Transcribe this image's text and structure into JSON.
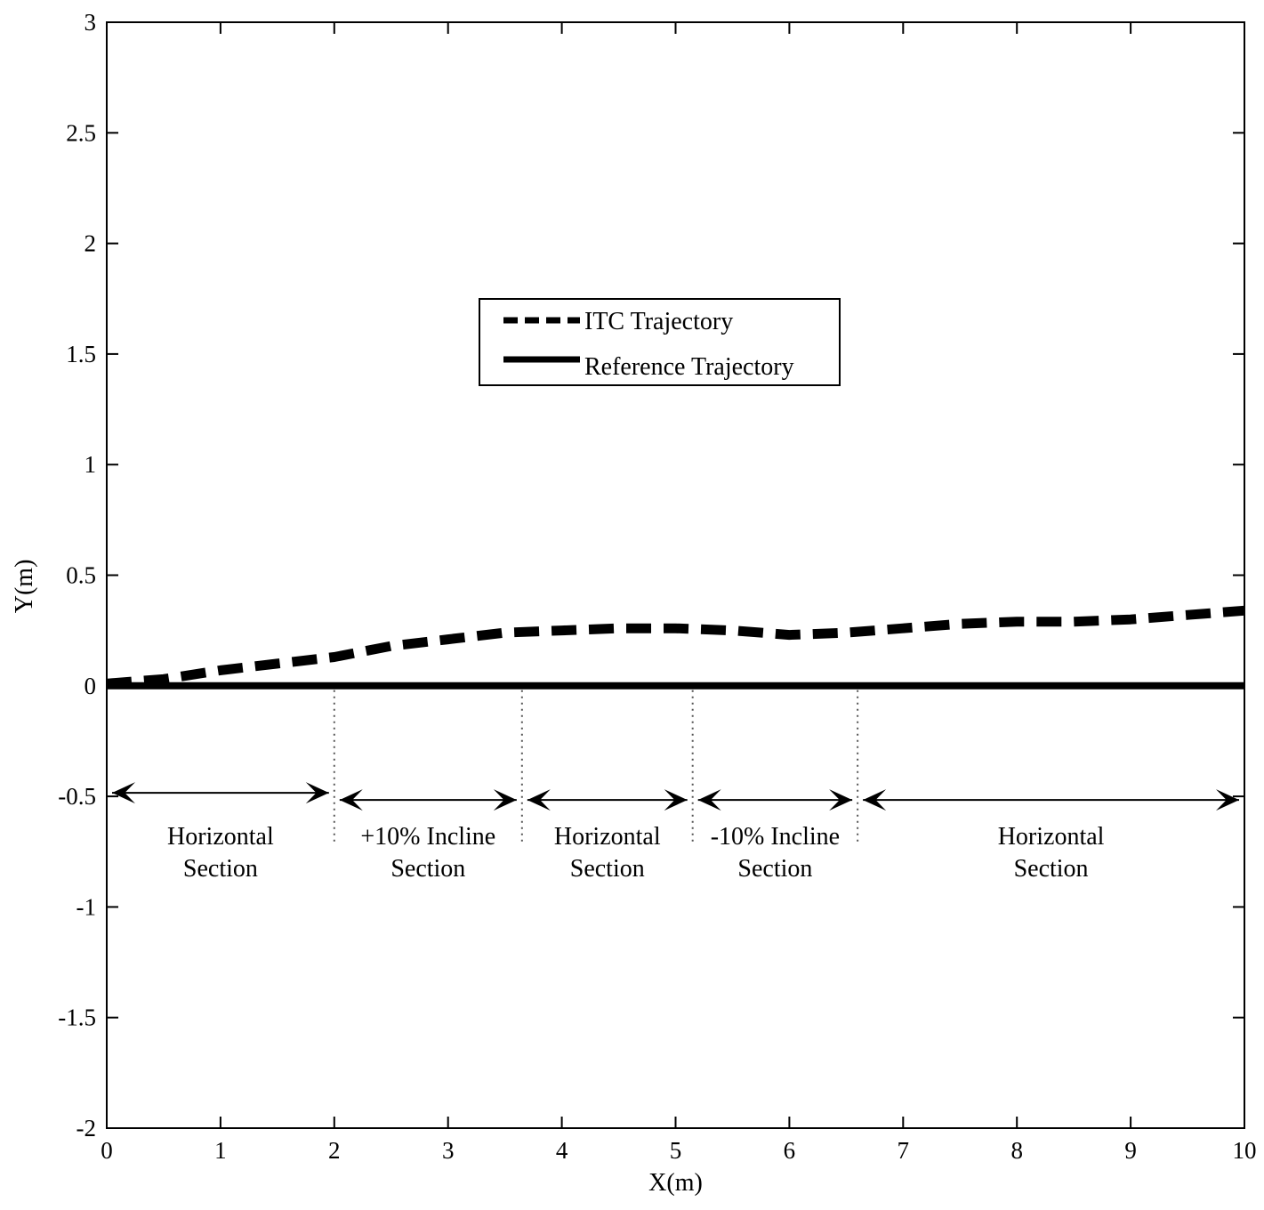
{
  "chart_data": {
    "type": "line",
    "xlabel": "X(m)",
    "ylabel": "Y(m)",
    "xlim": [
      0,
      10
    ],
    "ylim": [
      -2,
      3
    ],
    "xticks": [
      0,
      1,
      2,
      3,
      4,
      5,
      6,
      7,
      8,
      9,
      10
    ],
    "xtick_labels": [
      "0",
      "1",
      "2",
      "3",
      "4",
      "5",
      "6",
      "7",
      "8",
      "9",
      "10"
    ],
    "yticks": [
      3,
      2.5,
      2,
      1.5,
      1,
      0.5,
      0,
      -0.5,
      -1,
      -1.5,
      -2
    ],
    "ytick_labels": [
      "3",
      "2.5",
      "2",
      "1.5",
      "1",
      "0.5",
      "0",
      "-0.5",
      "-1",
      "-1.5",
      "-2"
    ],
    "grid": false,
    "legend_position": "top-center",
    "series": [
      {
        "name": "ITC Trajectory",
        "style": "dashed",
        "color": "#000000",
        "x": [
          0,
          0.5,
          1,
          1.5,
          2,
          2.5,
          3,
          3.5,
          4,
          4.5,
          5,
          5.5,
          6,
          6.5,
          7,
          7.5,
          8,
          8.5,
          9,
          9.5,
          10
        ],
        "y": [
          0.01,
          0.03,
          0.07,
          0.1,
          0.13,
          0.18,
          0.21,
          0.24,
          0.25,
          0.26,
          0.26,
          0.25,
          0.23,
          0.24,
          0.26,
          0.28,
          0.29,
          0.29,
          0.3,
          0.32,
          0.34
        ]
      },
      {
        "name": "Reference Trajectory",
        "style": "solid",
        "color": "#000000",
        "x": [
          0,
          10
        ],
        "y": [
          0,
          0
        ]
      }
    ],
    "section_boundaries_x": [
      2,
      3.65,
      5.15,
      6.6
    ],
    "sections": [
      {
        "label_line1": "Horizontal",
        "label_line2": "Section",
        "x_start": 0,
        "x_end": 2
      },
      {
        "label_line1": "+10% Incline",
        "label_line2": "Section",
        "x_start": 2,
        "x_end": 3.65
      },
      {
        "label_line1": "Horizontal",
        "label_line2": "Section",
        "x_start": 3.65,
        "x_end": 5.15
      },
      {
        "label_line1": "-10% Incline",
        "label_line2": "Section",
        "x_start": 5.15,
        "x_end": 6.6
      },
      {
        "label_line1": "Horizontal",
        "label_line2": "Section",
        "x_start": 6.6,
        "x_end": 10
      }
    ],
    "section_arrow_y": -0.5
  }
}
